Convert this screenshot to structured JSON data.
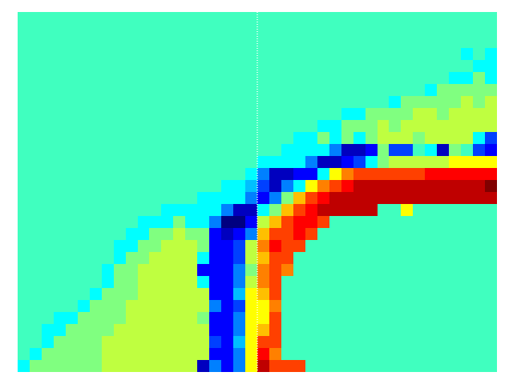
{
  "chart_data": {
    "type": "heatmap",
    "tick_labels": false,
    "color": "jet",
    "zlim": [
      -7,
      9
    ],
    "cells": [
      [
        0,
        0,
        0,
        0,
        0,
        0,
        0,
        0,
        0,
        0,
        0,
        0,
        0,
        0,
        0,
        0,
        0,
        0,
        0,
        0,
        0,
        0,
        0,
        0,
        0,
        0,
        0,
        0,
        0,
        0,
        0,
        0,
        0,
        0,
        0,
        0,
        0,
        0,
        0,
        0
      ],
      [
        0,
        0,
        0,
        0,
        0,
        0,
        0,
        0,
        0,
        0,
        0,
        0,
        0,
        0,
        0,
        0,
        0,
        0,
        0,
        0,
        0,
        0,
        0,
        0,
        0,
        0,
        0,
        0,
        0,
        0,
        0,
        0,
        0,
        0,
        0,
        0,
        0,
        0,
        0,
        0
      ],
      [
        0,
        0,
        0,
        0,
        0,
        0,
        0,
        0,
        0,
        0,
        0,
        0,
        0,
        0,
        0,
        0,
        0,
        0,
        0,
        0,
        0,
        0,
        0,
        0,
        0,
        0,
        0,
        0,
        0,
        0,
        0,
        0,
        0,
        0,
        0,
        0,
        0,
        0,
        0,
        0
      ],
      [
        0,
        0,
        0,
        0,
        0,
        0,
        0,
        0,
        0,
        0,
        0,
        0,
        0,
        0,
        0,
        0,
        0,
        0,
        0,
        0,
        0,
        0,
        0,
        0,
        0,
        0,
        0,
        0,
        0,
        0,
        0,
        0,
        0,
        0,
        0,
        0,
        0,
        -1,
        0,
        -1
      ],
      [
        0,
        0,
        0,
        0,
        0,
        0,
        0,
        0,
        0,
        0,
        0,
        0,
        0,
        0,
        0,
        0,
        0,
        0,
        0,
        0,
        0,
        0,
        0,
        0,
        0,
        0,
        0,
        0,
        0,
        0,
        0,
        0,
        0,
        0,
        0,
        0,
        0,
        0,
        -1,
        -1
      ],
      [
        0,
        0,
        0,
        0,
        0,
        0,
        0,
        0,
        0,
        0,
        0,
        0,
        0,
        0,
        0,
        0,
        0,
        0,
        0,
        0,
        0,
        0,
        0,
        0,
        0,
        0,
        0,
        0,
        0,
        0,
        0,
        0,
        0,
        0,
        0,
        0,
        -1,
        -1,
        1,
        -1
      ],
      [
        0,
        0,
        0,
        0,
        0,
        0,
        0,
        0,
        0,
        0,
        0,
        0,
        0,
        0,
        0,
        0,
        0,
        0,
        0,
        0,
        0,
        0,
        0,
        0,
        0,
        0,
        0,
        0,
        0,
        0,
        0,
        0,
        0,
        0,
        -1,
        1,
        1,
        1,
        1,
        1
      ],
      [
        0,
        0,
        0,
        0,
        0,
        0,
        0,
        0,
        0,
        0,
        0,
        0,
        0,
        0,
        0,
        0,
        0,
        0,
        0,
        0,
        0,
        0,
        0,
        0,
        0,
        0,
        0,
        0,
        0,
        0,
        0,
        -1,
        1,
        1,
        1,
        1,
        1,
        2,
        1,
        2
      ],
      [
        0,
        0,
        0,
        0,
        0,
        0,
        0,
        0,
        0,
        0,
        0,
        0,
        0,
        0,
        0,
        0,
        0,
        0,
        0,
        0,
        0,
        0,
        0,
        0,
        0,
        0,
        0,
        -1,
        -1,
        1,
        1,
        1,
        1,
        2,
        2,
        1,
        2,
        2,
        2,
        2
      ],
      [
        0,
        0,
        0,
        0,
        0,
        0,
        0,
        0,
        0,
        0,
        0,
        0,
        0,
        0,
        0,
        0,
        0,
        0,
        0,
        0,
        0,
        0,
        0,
        0,
        0,
        -1,
        -1,
        1,
        1,
        1,
        2,
        1,
        2,
        2,
        2,
        2,
        2,
        2,
        2,
        2
      ],
      [
        0,
        0,
        0,
        0,
        0,
        0,
        0,
        0,
        0,
        0,
        0,
        0,
        0,
        0,
        0,
        0,
        0,
        0,
        0,
        0,
        0,
        0,
        0,
        -1,
        -1,
        1,
        -1,
        1,
        -1,
        1,
        2,
        2,
        2,
        1,
        2,
        2,
        2,
        2,
        -1,
        -4
      ],
      [
        0,
        0,
        0,
        0,
        0,
        0,
        0,
        0,
        0,
        0,
        0,
        0,
        0,
        0,
        0,
        0,
        0,
        0,
        0,
        0,
        0,
        0,
        -1,
        -1,
        -1,
        -1,
        -3,
        -6,
        -6,
        -5,
        1,
        -4,
        -4,
        0,
        -1,
        -6,
        1,
        0,
        -4,
        -5
      ],
      [
        0,
        0,
        0,
        0,
        0,
        0,
        0,
        0,
        0,
        0,
        0,
        0,
        0,
        0,
        0,
        0,
        0,
        0,
        0,
        0,
        -1,
        -1,
        -1,
        -1,
        -3,
        -6,
        -6,
        -5,
        -4,
        -1,
        1,
        2,
        2,
        2,
        2,
        2,
        3,
        3,
        3,
        3
      ],
      [
        0,
        0,
        0,
        0,
        0,
        0,
        0,
        0,
        0,
        0,
        0,
        0,
        0,
        0,
        0,
        0,
        0,
        0,
        0,
        -1,
        -3,
        -6,
        -6,
        -5,
        -5,
        -1,
        3,
        5,
        6,
        6,
        6,
        6,
        6,
        6,
        7,
        7,
        7,
        7,
        7,
        7
      ],
      [
        0,
        0,
        0,
        0,
        0,
        0,
        0,
        0,
        0,
        0,
        0,
        0,
        0,
        0,
        0,
        0,
        0,
        -1,
        -1,
        -2,
        -4,
        -6,
        -3,
        -1,
        3,
        5,
        6,
        7,
        8,
        8,
        8,
        8,
        8,
        8,
        8,
        8,
        8,
        8,
        8,
        9
      ],
      [
        0,
        0,
        0,
        0,
        0,
        0,
        0,
        0,
        0,
        0,
        0,
        0,
        0,
        0,
        0,
        -1,
        -1,
        -1,
        -1,
        -3,
        -5,
        -3,
        1,
        4,
        6,
        7,
        8,
        8,
        8,
        8,
        8,
        8,
        8,
        8,
        8,
        8,
        8,
        8,
        8,
        8
      ],
      [
        0,
        0,
        0,
        0,
        0,
        0,
        0,
        0,
        0,
        0,
        0,
        0,
        -1,
        -1,
        -1,
        -1,
        -1,
        -3,
        -6,
        -6,
        -1,
        1,
        4,
        6,
        7,
        8,
        8,
        8,
        8,
        8,
        0,
        0,
        3,
        0,
        0,
        0,
        0,
        0,
        0,
        0
      ],
      [
        0,
        0,
        0,
        0,
        0,
        0,
        0,
        0,
        0,
        0,
        -1,
        -1,
        -1,
        1,
        -1,
        -1,
        -3,
        -7,
        -7,
        -5,
        2,
        4,
        6,
        7,
        7,
        6,
        0,
        0,
        0,
        0,
        0,
        0,
        0,
        0,
        0,
        0,
        0,
        0,
        0,
        0
      ],
      [
        0,
        0,
        0,
        0,
        0,
        0,
        0,
        0,
        0,
        -1,
        -1,
        1,
        1,
        2,
        1,
        1,
        -5,
        -6,
        -5,
        -3,
        4,
        6,
        6,
        7,
        6,
        0,
        0,
        0,
        0,
        0,
        0,
        0,
        0,
        0,
        0,
        0,
        0,
        0,
        0,
        0
      ],
      [
        0,
        0,
        0,
        0,
        0,
        0,
        0,
        0,
        -1,
        -1,
        1,
        1,
        2,
        2,
        2,
        1,
        -5,
        -5,
        -4,
        2,
        5,
        7,
        6,
        6,
        0,
        0,
        0,
        0,
        0,
        0,
        0,
        0,
        0,
        0,
        0,
        0,
        0,
        0,
        0,
        0
      ],
      [
        0,
        0,
        0,
        0,
        0,
        0,
        0,
        0,
        -1,
        1,
        1,
        2,
        2,
        2,
        2,
        -1,
        -5,
        -5,
        -4,
        2,
        4,
        6,
        6,
        0,
        0,
        0,
        0,
        0,
        0,
        0,
        0,
        0,
        0,
        0,
        0,
        0,
        0,
        0,
        0,
        0
      ],
      [
        0,
        0,
        0,
        0,
        0,
        0,
        0,
        -1,
        1,
        1,
        2,
        2,
        2,
        2,
        2,
        -5,
        -5,
        -5,
        -3,
        1,
        5,
        6,
        5,
        0,
        0,
        0,
        0,
        0,
        0,
        0,
        0,
        0,
        0,
        0,
        0,
        0,
        0,
        0,
        0,
        0
      ],
      [
        0,
        0,
        0,
        0,
        0,
        0,
        0,
        -1,
        1,
        1,
        2,
        2,
        2,
        2,
        2,
        -1,
        -5,
        -5,
        -3,
        2,
        5,
        6,
        0,
        0,
        0,
        0,
        0,
        0,
        0,
        0,
        0,
        0,
        0,
        0,
        0,
        0,
        0,
        0,
        0,
        0
      ],
      [
        0,
        0,
        0,
        0,
        0,
        0,
        -1,
        1,
        1,
        1,
        2,
        2,
        2,
        2,
        2,
        2,
        -5,
        -5,
        -2,
        3,
        4,
        6,
        0,
        0,
        0,
        0,
        0,
        0,
        0,
        0,
        0,
        0,
        0,
        0,
        0,
        0,
        0,
        0,
        0,
        0
      ],
      [
        0,
        0,
        0,
        0,
        0,
        -1,
        1,
        1,
        1,
        2,
        2,
        2,
        2,
        2,
        2,
        2,
        -3,
        -5,
        -4,
        3,
        3,
        5,
        0,
        0,
        0,
        0,
        0,
        0,
        0,
        0,
        0,
        0,
        0,
        0,
        0,
        0,
        0,
        0,
        0,
        0
      ],
      [
        0,
        0,
        0,
        -1,
        -1,
        1,
        1,
        1,
        1,
        2,
        2,
        2,
        2,
        2,
        2,
        1,
        -5,
        -5,
        -3,
        3,
        3,
        6,
        0,
        0,
        0,
        0,
        0,
        0,
        0,
        0,
        0,
        0,
        0,
        0,
        0,
        0,
        0,
        0,
        0,
        0
      ],
      [
        0,
        0,
        -1,
        -1,
        1,
        1,
        1,
        1,
        2,
        2,
        2,
        2,
        2,
        2,
        2,
        2,
        -5,
        -5,
        -3,
        3,
        4,
        6,
        0,
        0,
        0,
        0,
        0,
        0,
        0,
        0,
        0,
        0,
        0,
        0,
        0,
        0,
        0,
        0,
        0,
        0
      ],
      [
        0,
        0,
        -1,
        1,
        1,
        1,
        1,
        2,
        2,
        2,
        2,
        2,
        2,
        2,
        2,
        2,
        -4,
        -5,
        -2,
        3,
        6,
        6,
        0,
        0,
        0,
        0,
        0,
        0,
        0,
        0,
        0,
        0,
        0,
        0,
        0,
        0,
        0,
        0,
        0,
        0
      ],
      [
        0,
        -1,
        1,
        1,
        1,
        1,
        1,
        2,
        2,
        2,
        2,
        2,
        2,
        2,
        2,
        2,
        -5,
        -5,
        -3,
        3,
        7,
        5,
        0,
        0,
        0,
        0,
        0,
        0,
        0,
        0,
        0,
        0,
        0,
        0,
        0,
        0,
        0,
        0,
        0,
        0
      ],
      [
        -1,
        1,
        1,
        1,
        1,
        1,
        1,
        2,
        2,
        2,
        2,
        2,
        2,
        2,
        2,
        -6,
        -3,
        -5,
        -3,
        3,
        8,
        6,
        6,
        6,
        0,
        0,
        0,
        0,
        0,
        0,
        0,
        0,
        0,
        0,
        0,
        0,
        0,
        0,
        0,
        0
      ]
    ]
  }
}
